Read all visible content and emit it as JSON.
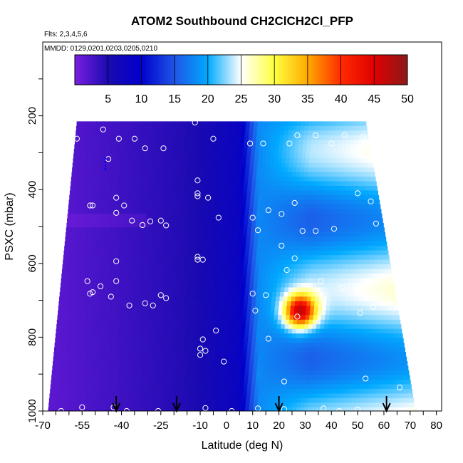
{
  "chart_data": {
    "type": "heatmap",
    "title": "ATOM2 Southbound CH2ClCH2Cl_PFP",
    "subtitle_flights": "Flts: 2,3,4,5,6",
    "subtitle_dates": "MMDD: 0129,0201,0203,0205,0210",
    "xlabel": "Latitude (deg N)",
    "ylabel": "PSXC (mbar)",
    "xlim": [
      -70,
      82
    ],
    "ylim": [
      1000,
      0
    ],
    "x_tick_labels": [
      "-70",
      "-55",
      "-40",
      "-25",
      "-10",
      "0",
      "10",
      "20",
      "30",
      "40",
      "50",
      "60",
      "70",
      "80"
    ],
    "y_tick_labels": [
      "200",
      "400",
      "600",
      "800",
      "1000"
    ],
    "colorbar": {
      "ticks": [
        "5",
        "10",
        "15",
        "20",
        "25",
        "30",
        "35",
        "40",
        "45",
        "50"
      ],
      "range": [
        0,
        50
      ],
      "colors": [
        "#7a1ee0",
        "#1a0ab0",
        "#0000cc",
        "#1f55e6",
        "#00aaff",
        "#ffffff",
        "#ffff40",
        "#ffaa00",
        "#ff2a00",
        "#e00000",
        "#8b1a1a"
      ]
    },
    "grid": false,
    "latitude_arrows": [
      -42,
      -19,
      20,
      61
    ],
    "series": [
      {
        "name": "curtain",
        "x_range": [
          -68,
          72
        ],
        "y_range": [
          215,
          1000
        ],
        "value_range": [
          1,
          45
        ]
      },
      {
        "name": "samples",
        "points": [
          {
            "x": -63,
            "y": 1000
          },
          {
            "x": -55,
            "y": 990
          },
          {
            "x": -43,
            "y": 990
          },
          {
            "x": -38,
            "y": 1000
          },
          {
            "x": -26,
            "y": 1000
          },
          {
            "x": -8,
            "y": 992
          },
          {
            "x": 2,
            "y": 1000
          },
          {
            "x": 12,
            "y": 993
          },
          {
            "x": 22,
            "y": 995
          },
          {
            "x": 37,
            "y": 993
          },
          {
            "x": 43,
            "y": 1000
          },
          {
            "x": 50,
            "y": 996
          },
          {
            "x": -57,
            "y": 262
          },
          {
            "x": -47,
            "y": 237
          },
          {
            "x": -41,
            "y": 262
          },
          {
            "x": -35,
            "y": 262
          },
          {
            "x": -31,
            "y": 288
          },
          {
            "x": -24,
            "y": 288
          },
          {
            "x": -12,
            "y": 218
          },
          {
            "x": -5,
            "y": 262
          },
          {
            "x": 9,
            "y": 275
          },
          {
            "x": 14,
            "y": 275
          },
          {
            "x": 24,
            "y": 275
          },
          {
            "x": 27,
            "y": 253
          },
          {
            "x": 34,
            "y": 253
          },
          {
            "x": 40,
            "y": 275
          },
          {
            "x": 45,
            "y": 253
          },
          {
            "x": 52,
            "y": 257
          },
          {
            "x": 57,
            "y": 275
          },
          {
            "x": -45,
            "y": 317
          },
          {
            "x": -42,
            "y": 422
          },
          {
            "x": -39,
            "y": 443
          },
          {
            "x": -52,
            "y": 443
          },
          {
            "x": -51,
            "y": 443
          },
          {
            "x": -42,
            "y": 463
          },
          {
            "x": -36,
            "y": 484
          },
          {
            "x": -32,
            "y": 496
          },
          {
            "x": -29,
            "y": 486
          },
          {
            "x": -25,
            "y": 484
          },
          {
            "x": -23,
            "y": 497
          },
          {
            "x": -11,
            "y": 375
          },
          {
            "x": -11,
            "y": 410
          },
          {
            "x": -11,
            "y": 418
          },
          {
            "x": -7,
            "y": 422
          },
          {
            "x": -3,
            "y": 476
          },
          {
            "x": 10,
            "y": 476
          },
          {
            "x": 16,
            "y": 456
          },
          {
            "x": 21,
            "y": 466
          },
          {
            "x": 26,
            "y": 436
          },
          {
            "x": 29,
            "y": 512
          },
          {
            "x": 34,
            "y": 512
          },
          {
            "x": 41,
            "y": 506
          },
          {
            "x": 50,
            "y": 410
          },
          {
            "x": 55,
            "y": 432
          },
          {
            "x": 57,
            "y": 492
          },
          {
            "x": 12,
            "y": 510
          },
          {
            "x": 21,
            "y": 552
          },
          {
            "x": 26,
            "y": 586
          },
          {
            "x": -11,
            "y": 590
          },
          {
            "x": -11,
            "y": 582
          },
          {
            "x": -9,
            "y": 590
          },
          {
            "x": -42,
            "y": 594
          },
          {
            "x": 23,
            "y": 618
          },
          {
            "x": -53,
            "y": 648
          },
          {
            "x": -42,
            "y": 648
          },
          {
            "x": -68,
            "y": 644
          },
          {
            "x": -52,
            "y": 682
          },
          {
            "x": -51,
            "y": 678
          },
          {
            "x": -48,
            "y": 662
          },
          {
            "x": -44,
            "y": 690
          },
          {
            "x": -37,
            "y": 714
          },
          {
            "x": -31,
            "y": 708
          },
          {
            "x": -25,
            "y": 686
          },
          {
            "x": -23,
            "y": 694
          },
          {
            "x": -28,
            "y": 714
          },
          {
            "x": 10,
            "y": 682
          },
          {
            "x": 15,
            "y": 686
          },
          {
            "x": 36,
            "y": 648
          },
          {
            "x": 44,
            "y": 666
          },
          {
            "x": 54,
            "y": 652
          },
          {
            "x": 58,
            "y": 686
          },
          {
            "x": 56,
            "y": 718
          },
          {
            "x": 51,
            "y": 734
          },
          {
            "x": 11,
            "y": 728
          },
          {
            "x": 27,
            "y": 744
          },
          {
            "x": 16,
            "y": 804
          },
          {
            "x": -9,
            "y": 806
          },
          {
            "x": -8,
            "y": 837
          },
          {
            "x": -10,
            "y": 848
          },
          {
            "x": -10,
            "y": 831
          },
          {
            "x": -4,
            "y": 782
          },
          {
            "x": -1,
            "y": 866
          },
          {
            "x": 22,
            "y": 920
          },
          {
            "x": 53,
            "y": 912
          },
          {
            "x": 66,
            "y": 936
          }
        ]
      }
    ],
    "colors": {
      "grid_frame": "#000000",
      "sample_marker": "#ffffff",
      "profile_mark": "#0000ff"
    }
  }
}
